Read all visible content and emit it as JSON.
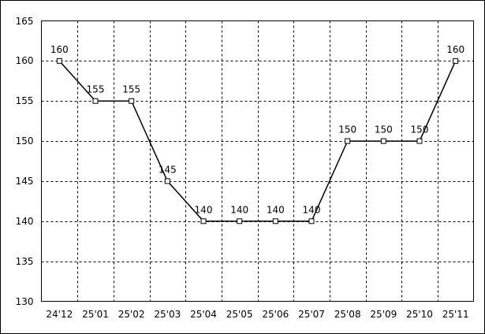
{
  "chart_data": {
    "type": "line",
    "categories": [
      "24'12",
      "25'01",
      "25'02",
      "25'03",
      "25'04",
      "25'05",
      "25'06",
      "25'07",
      "25'08",
      "25'09",
      "25'10",
      "25'11"
    ],
    "values": [
      160,
      155,
      155,
      145,
      140,
      140,
      140,
      140,
      150,
      150,
      150,
      160
    ],
    "color": "#000000",
    "ylim": [
      130,
      165
    ],
    "yticks": [
      130,
      135,
      140,
      145,
      150,
      155,
      160,
      165
    ],
    "grid": true
  }
}
